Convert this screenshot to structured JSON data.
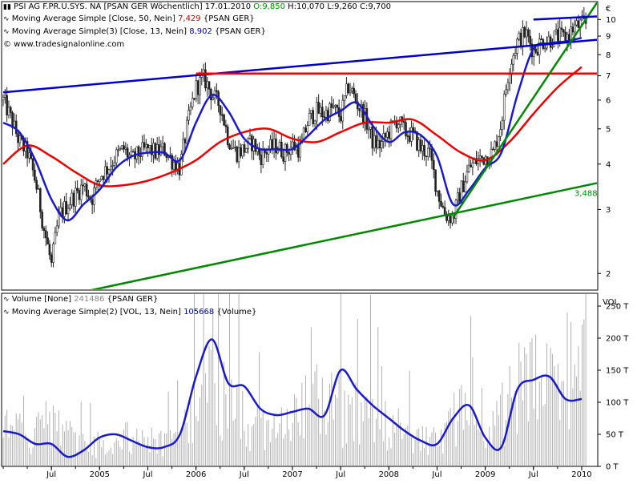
{
  "header": {
    "instrument": "PSI AG F.PR.U.SYS. NA [PSAN GER  Wöchentlich]",
    "date": "17.01.2010",
    "o_label": "O:9,850",
    "h_label": "H:10,070",
    "l_label": "L:9,260",
    "c_label": "C:9,700",
    "ma1_text": "Moving Average Simple [Close, 50, Nein]",
    "ma1_value": "7,429",
    "ma1_suffix": "{PSAN GER}",
    "ma2_text": "Moving Average Simple(3) [Close, 13, Nein]",
    "ma2_value": "8,902",
    "ma2_suffix": "{PSAN GER}",
    "copyright": "© www.tradesignalonline.com",
    "vol_text": "Volume [None]",
    "vol_value": "241486",
    "vol_suffix": "{PSAN GER}",
    "vma_text": "Moving Average Simple(2) [VOL, 13, Nein]",
    "vma_value": "105668",
    "vma_suffix": "{Volume}"
  },
  "chart_data": [
    {
      "type": "candlestick",
      "price_axis_unit": "€",
      "y_scale": "log",
      "ylim": [
        1.8,
        11.2
      ],
      "y_ticks": [
        "2",
        "3",
        "4",
        "5",
        "6",
        "7",
        "8",
        "9",
        "10"
      ],
      "x_ticks": [
        "Jul",
        "2005",
        "Jul",
        "2006",
        "Jul",
        "2007",
        "Jul",
        "2008",
        "Jul",
        "2009",
        "Jul",
        "2010"
      ],
      "x_range": [
        "2004-01",
        "2010-01"
      ],
      "close_series": [
        [
          "2004-01",
          6.0
        ],
        [
          "2004-02",
          5.3
        ],
        [
          "2004-03",
          4.6
        ],
        [
          "2004-04",
          4.3
        ],
        [
          "2004-05",
          3.6
        ],
        [
          "2004-06",
          2.7
        ],
        [
          "2004-07",
          2.1
        ],
        [
          "2004-08",
          2.9
        ],
        [
          "2004-09",
          3.1
        ],
        [
          "2004-10",
          3.3
        ],
        [
          "2004-11",
          3.5
        ],
        [
          "2004-12",
          3.2
        ],
        [
          "2005-01",
          3.7
        ],
        [
          "2005-02",
          3.9
        ],
        [
          "2005-03",
          4.2
        ],
        [
          "2005-04",
          4.4
        ],
        [
          "2005-05",
          4.1
        ],
        [
          "2005-06",
          4.3
        ],
        [
          "2005-07",
          4.4
        ],
        [
          "2005-08",
          4.3
        ],
        [
          "2005-09",
          4.4
        ],
        [
          "2005-10",
          4.1
        ],
        [
          "2005-11",
          3.9
        ],
        [
          "2005-12",
          5.2
        ],
        [
          "2006-01",
          6.5
        ],
        [
          "2006-02",
          6.9
        ],
        [
          "2006-03",
          6.2
        ],
        [
          "2006-04",
          5.8
        ],
        [
          "2006-05",
          4.7
        ],
        [
          "2006-06",
          4.3
        ],
        [
          "2006-07",
          4.4
        ],
        [
          "2006-08",
          4.6
        ],
        [
          "2006-09",
          4.2
        ],
        [
          "2006-10",
          4.4
        ],
        [
          "2006-11",
          4.5
        ],
        [
          "2006-12",
          4.3
        ],
        [
          "2007-01",
          4.5
        ],
        [
          "2007-02",
          4.4
        ],
        [
          "2007-03",
          5.3
        ],
        [
          "2007-04",
          5.6
        ],
        [
          "2007-05",
          5.5
        ],
        [
          "2007-06",
          5.7
        ],
        [
          "2007-07",
          5.4
        ],
        [
          "2007-08",
          6.6
        ],
        [
          "2007-09",
          5.9
        ],
        [
          "2007-10",
          5.4
        ],
        [
          "2007-11",
          4.6
        ],
        [
          "2007-12",
          4.5
        ],
        [
          "2008-01",
          4.9
        ],
        [
          "2008-02",
          5.3
        ],
        [
          "2008-03",
          4.9
        ],
        [
          "2008-04",
          4.8
        ],
        [
          "2008-05",
          4.4
        ],
        [
          "2008-06",
          4.3
        ],
        [
          "2008-07",
          3.4
        ],
        [
          "2008-08",
          2.9
        ],
        [
          "2008-09",
          2.85
        ],
        [
          "2008-10",
          3.4
        ],
        [
          "2008-11",
          3.9
        ],
        [
          "2008-12",
          4.1
        ],
        [
          "2009-01",
          4.2
        ],
        [
          "2009-02",
          4.3
        ],
        [
          "2009-03",
          5.2
        ],
        [
          "2009-04",
          7.4
        ],
        [
          "2009-05",
          8.7
        ],
        [
          "2009-06",
          9.2
        ],
        [
          "2009-07",
          8.2
        ],
        [
          "2009-08",
          8.7
        ],
        [
          "2009-09",
          8.8
        ],
        [
          "2009-10",
          9.0
        ],
        [
          "2009-11",
          8.9
        ],
        [
          "2009-12",
          9.5
        ],
        [
          "2010-01",
          9.7
        ]
      ],
      "ma50": [
        [
          "2004-01",
          4.0
        ],
        [
          "2004-04",
          4.5
        ],
        [
          "2004-07",
          4.2
        ],
        [
          "2004-10",
          3.8
        ],
        [
          "2005-01",
          3.5
        ],
        [
          "2005-04",
          3.5
        ],
        [
          "2005-07",
          3.6
        ],
        [
          "2005-10",
          3.8
        ],
        [
          "2006-01",
          4.1
        ],
        [
          "2006-04",
          4.6
        ],
        [
          "2006-07",
          4.9
        ],
        [
          "2006-10",
          5.0
        ],
        [
          "2007-01",
          4.7
        ],
        [
          "2007-04",
          4.6
        ],
        [
          "2007-07",
          4.9
        ],
        [
          "2007-10",
          5.2
        ],
        [
          "2008-01",
          5.2
        ],
        [
          "2008-04",
          5.3
        ],
        [
          "2008-07",
          4.8
        ],
        [
          "2008-10",
          4.3
        ],
        [
          "2009-01",
          4.1
        ],
        [
          "2009-04",
          4.6
        ],
        [
          "2009-07",
          5.5
        ],
        [
          "2009-10",
          6.5
        ],
        [
          "2010-01",
          7.4
        ]
      ],
      "ma13": [
        [
          "2004-01",
          5.2
        ],
        [
          "2004-03",
          4.9
        ],
        [
          "2004-05",
          4.1
        ],
        [
          "2004-07",
          3.2
        ],
        [
          "2004-09",
          2.8
        ],
        [
          "2004-11",
          3.1
        ],
        [
          "2005-01",
          3.4
        ],
        [
          "2005-03",
          3.9
        ],
        [
          "2005-05",
          4.2
        ],
        [
          "2005-07",
          4.3
        ],
        [
          "2005-09",
          4.3
        ],
        [
          "2005-11",
          4.1
        ],
        [
          "2006-01",
          5.2
        ],
        [
          "2006-03",
          6.2
        ],
        [
          "2006-05",
          5.6
        ],
        [
          "2006-07",
          4.7
        ],
        [
          "2006-09",
          4.4
        ],
        [
          "2006-11",
          4.4
        ],
        [
          "2007-01",
          4.4
        ],
        [
          "2007-03",
          4.8
        ],
        [
          "2007-05",
          5.3
        ],
        [
          "2007-07",
          5.6
        ],
        [
          "2007-09",
          5.9
        ],
        [
          "2007-11",
          5.1
        ],
        [
          "2008-01",
          4.6
        ],
        [
          "2008-03",
          4.9
        ],
        [
          "2008-05",
          4.8
        ],
        [
          "2008-07",
          4.2
        ],
        [
          "2008-09",
          3.1
        ],
        [
          "2008-11",
          3.4
        ],
        [
          "2009-01",
          3.9
        ],
        [
          "2009-03",
          4.3
        ],
        [
          "2009-05",
          6.2
        ],
        [
          "2009-07",
          8.3
        ],
        [
          "2009-09",
          8.6
        ],
        [
          "2009-11",
          8.7
        ],
        [
          "2010-01",
          8.9
        ]
      ],
      "trendlines": [
        {
          "name": "blue-resistance",
          "color": "#0000cc",
          "from": [
            "2004-01",
            6.3
          ],
          "to": [
            "2010-03",
            8.8
          ]
        },
        {
          "name": "red-horizontal",
          "color": "#ee0000",
          "from": [
            "2006-01",
            7.1
          ],
          "to": [
            "2010-03",
            7.1
          ]
        },
        {
          "name": "green-support-long",
          "color": "#008800",
          "from": [
            "2004-12",
            1.8
          ],
          "to": [
            "2010-03",
            3.55
          ]
        },
        {
          "name": "green-support-steep",
          "color": "#008800",
          "from": [
            "2008-09",
            2.85
          ],
          "to": [
            "2010-03",
            11.2
          ]
        },
        {
          "name": "blue-top",
          "color": "#0000cc",
          "from": [
            "2009-07",
            10.0
          ],
          "to": [
            "2010-03",
            10.2
          ]
        }
      ],
      "annotations": [
        {
          "text": "3,488",
          "x": "2009-12",
          "y": 3.488,
          "color": "#008800"
        }
      ]
    },
    {
      "type": "bar",
      "name": "Volume",
      "axis_label": "VOL",
      "ylim": [
        0,
        270000
      ],
      "y_ticks": [
        "0 T",
        "50 T",
        "100 T",
        "150 T",
        "200 T",
        "250 T"
      ],
      "volume_levels": [
        [
          "2004-01",
          60000
        ],
        [
          "2004-04",
          50000
        ],
        [
          "2004-07",
          70000
        ],
        [
          "2004-10",
          45000
        ],
        [
          "2005-01",
          35000
        ],
        [
          "2005-04",
          45000
        ],
        [
          "2005-07",
          40000
        ],
        [
          "2005-10",
          35000
        ],
        [
          "2006-01",
          120000
        ],
        [
          "2006-03",
          180000
        ],
        [
          "2006-05",
          100000
        ],
        [
          "2006-07",
          80000
        ],
        [
          "2006-10",
          60000
        ],
        [
          "2007-01",
          70000
        ],
        [
          "2007-04",
          110000
        ],
        [
          "2007-07",
          95000
        ],
        [
          "2007-10",
          90000
        ],
        [
          "2008-01",
          70000
        ],
        [
          "2008-04",
          40000
        ],
        [
          "2008-07",
          40000
        ],
        [
          "2008-10",
          90000
        ],
        [
          "2009-01",
          35000
        ],
        [
          "2009-04",
          110000
        ],
        [
          "2009-07",
          140000
        ],
        [
          "2009-10",
          120000
        ],
        [
          "2010-01",
          240000
        ]
      ],
      "vma13": [
        [
          "2004-01",
          55000
        ],
        [
          "2004-03",
          50000
        ],
        [
          "2004-05",
          35000
        ],
        [
          "2004-07",
          35000
        ],
        [
          "2004-09",
          15000
        ],
        [
          "2004-11",
          25000
        ],
        [
          "2005-01",
          45000
        ],
        [
          "2005-03",
          50000
        ],
        [
          "2005-05",
          40000
        ],
        [
          "2005-07",
          30000
        ],
        [
          "2005-09",
          30000
        ],
        [
          "2005-11",
          50000
        ],
        [
          "2006-01",
          140000
        ],
        [
          "2006-03",
          198000
        ],
        [
          "2006-05",
          130000
        ],
        [
          "2006-07",
          125000
        ],
        [
          "2006-09",
          90000
        ],
        [
          "2006-11",
          80000
        ],
        [
          "2007-01",
          85000
        ],
        [
          "2007-03",
          90000
        ],
        [
          "2007-05",
          80000
        ],
        [
          "2007-07",
          150000
        ],
        [
          "2007-09",
          120000
        ],
        [
          "2007-11",
          95000
        ],
        [
          "2008-01",
          75000
        ],
        [
          "2008-03",
          55000
        ],
        [
          "2008-05",
          40000
        ],
        [
          "2008-07",
          35000
        ],
        [
          "2008-09",
          75000
        ],
        [
          "2008-11",
          95000
        ],
        [
          "2009-01",
          45000
        ],
        [
          "2009-03",
          30000
        ],
        [
          "2009-05",
          120000
        ],
        [
          "2009-07",
          135000
        ],
        [
          "2009-09",
          140000
        ],
        [
          "2009-11",
          105000
        ],
        [
          "2010-01",
          105000
        ]
      ]
    }
  ],
  "colors": {
    "ma50": "#ee0000",
    "ma13": "#1a1acc",
    "candle": "#222222",
    "volume_bar": "#b0b0b0",
    "vma": "#1a1acc",
    "trend_green": "#008800",
    "trend_blue": "#0000cc",
    "trend_red": "#ee0000"
  }
}
